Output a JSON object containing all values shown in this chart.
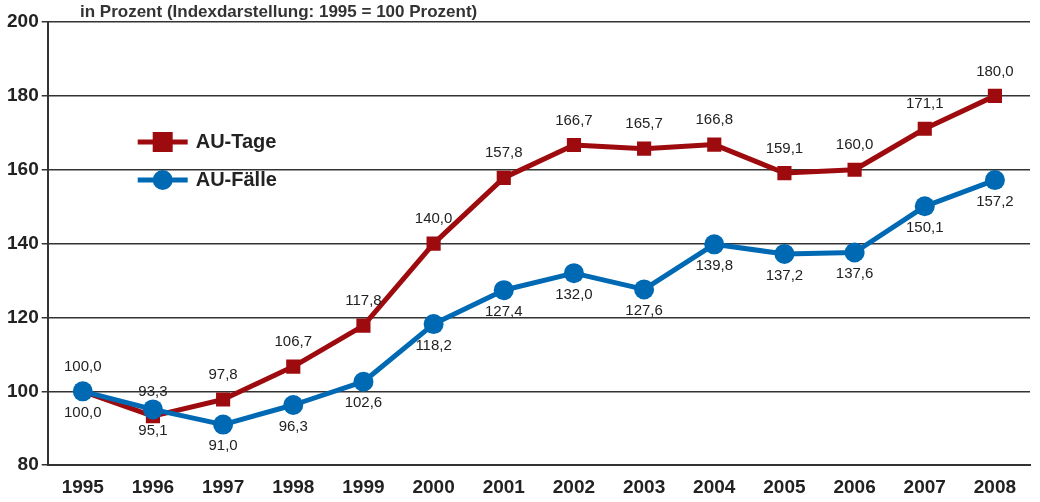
{
  "chart_data": {
    "type": "line",
    "subtitle": "in Prozent (Indexdarstellung: 1995 = 100 Prozent)",
    "categories": [
      "1995",
      "1996",
      "1997",
      "1998",
      "1999",
      "2000",
      "2001",
      "2002",
      "2003",
      "2004",
      "2005",
      "2006",
      "2007",
      "2008"
    ],
    "series": [
      {
        "name": "AU-Tage",
        "color": "#9e0b0f",
        "marker": "square",
        "values": [
          100.0,
          93.3,
          97.8,
          106.7,
          117.8,
          140.0,
          157.8,
          166.7,
          165.7,
          166.8,
          159.1,
          160.0,
          171.1,
          180.0
        ],
        "value_labels": [
          "100,0",
          "93,3",
          "97,8",
          "106,7",
          "117,8",
          "140,0",
          "157,8",
          "166,7",
          "165,7",
          "166,8",
          "159,1",
          "160,0",
          "171,1",
          "180,0"
        ]
      },
      {
        "name": "AU-Fälle",
        "color": "#0069b4",
        "marker": "circle",
        "values": [
          100.0,
          95.1,
          91.0,
          96.3,
          102.6,
          118.2,
          127.4,
          132.0,
          127.6,
          139.8,
          137.2,
          137.6,
          150.1,
          157.2
        ],
        "value_labels": [
          "100,0",
          "95,1",
          "91,0",
          "96,3",
          "102,6",
          "118,2",
          "127,4",
          "132,0",
          "127,6",
          "139,8",
          "137,2",
          "137,6",
          "150,1",
          "157,2"
        ]
      }
    ],
    "ylim": [
      80,
      200
    ],
    "yticks": [
      80,
      100,
      120,
      140,
      160,
      180,
      200
    ],
    "grid": "y",
    "legend": "top left",
    "line_style": "solid"
  }
}
